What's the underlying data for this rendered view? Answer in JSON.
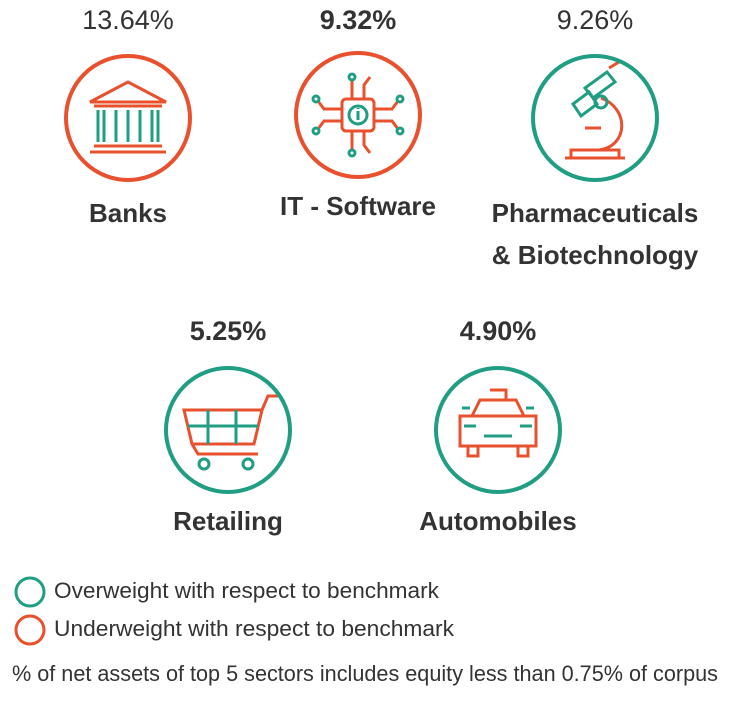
{
  "sectors": [
    {
      "percent": "13.64%",
      "bold": false,
      "name_lines": [
        "Banks"
      ],
      "ring_color": "#e8502e"
    },
    {
      "percent": "9.32%",
      "bold": true,
      "name_lines": [
        "IT - Software"
      ],
      "ring_color": "#e8502e"
    },
    {
      "percent": "9.26%",
      "bold": false,
      "name_lines": [
        "Pharmaceuticals",
        "& Biotechnology"
      ],
      "ring_color": "#1f9e83"
    },
    {
      "percent": "5.25%",
      "bold": true,
      "name_lines": [
        "Retailing"
      ],
      "ring_color": "#1f9e83"
    },
    {
      "percent": "4.90%",
      "bold": true,
      "name_lines": [
        "Automobiles"
      ],
      "ring_color": "#1f9e83"
    }
  ],
  "legend": [
    {
      "label": "Overweight with respect to benchmark",
      "color": "#1f9e83"
    },
    {
      "label": "Underweight with respect to benchmark",
      "color": "#e8502e"
    }
  ],
  "footnote": "% of net assets of top 5 sectors includes equity less than 0.75% of corpus"
}
